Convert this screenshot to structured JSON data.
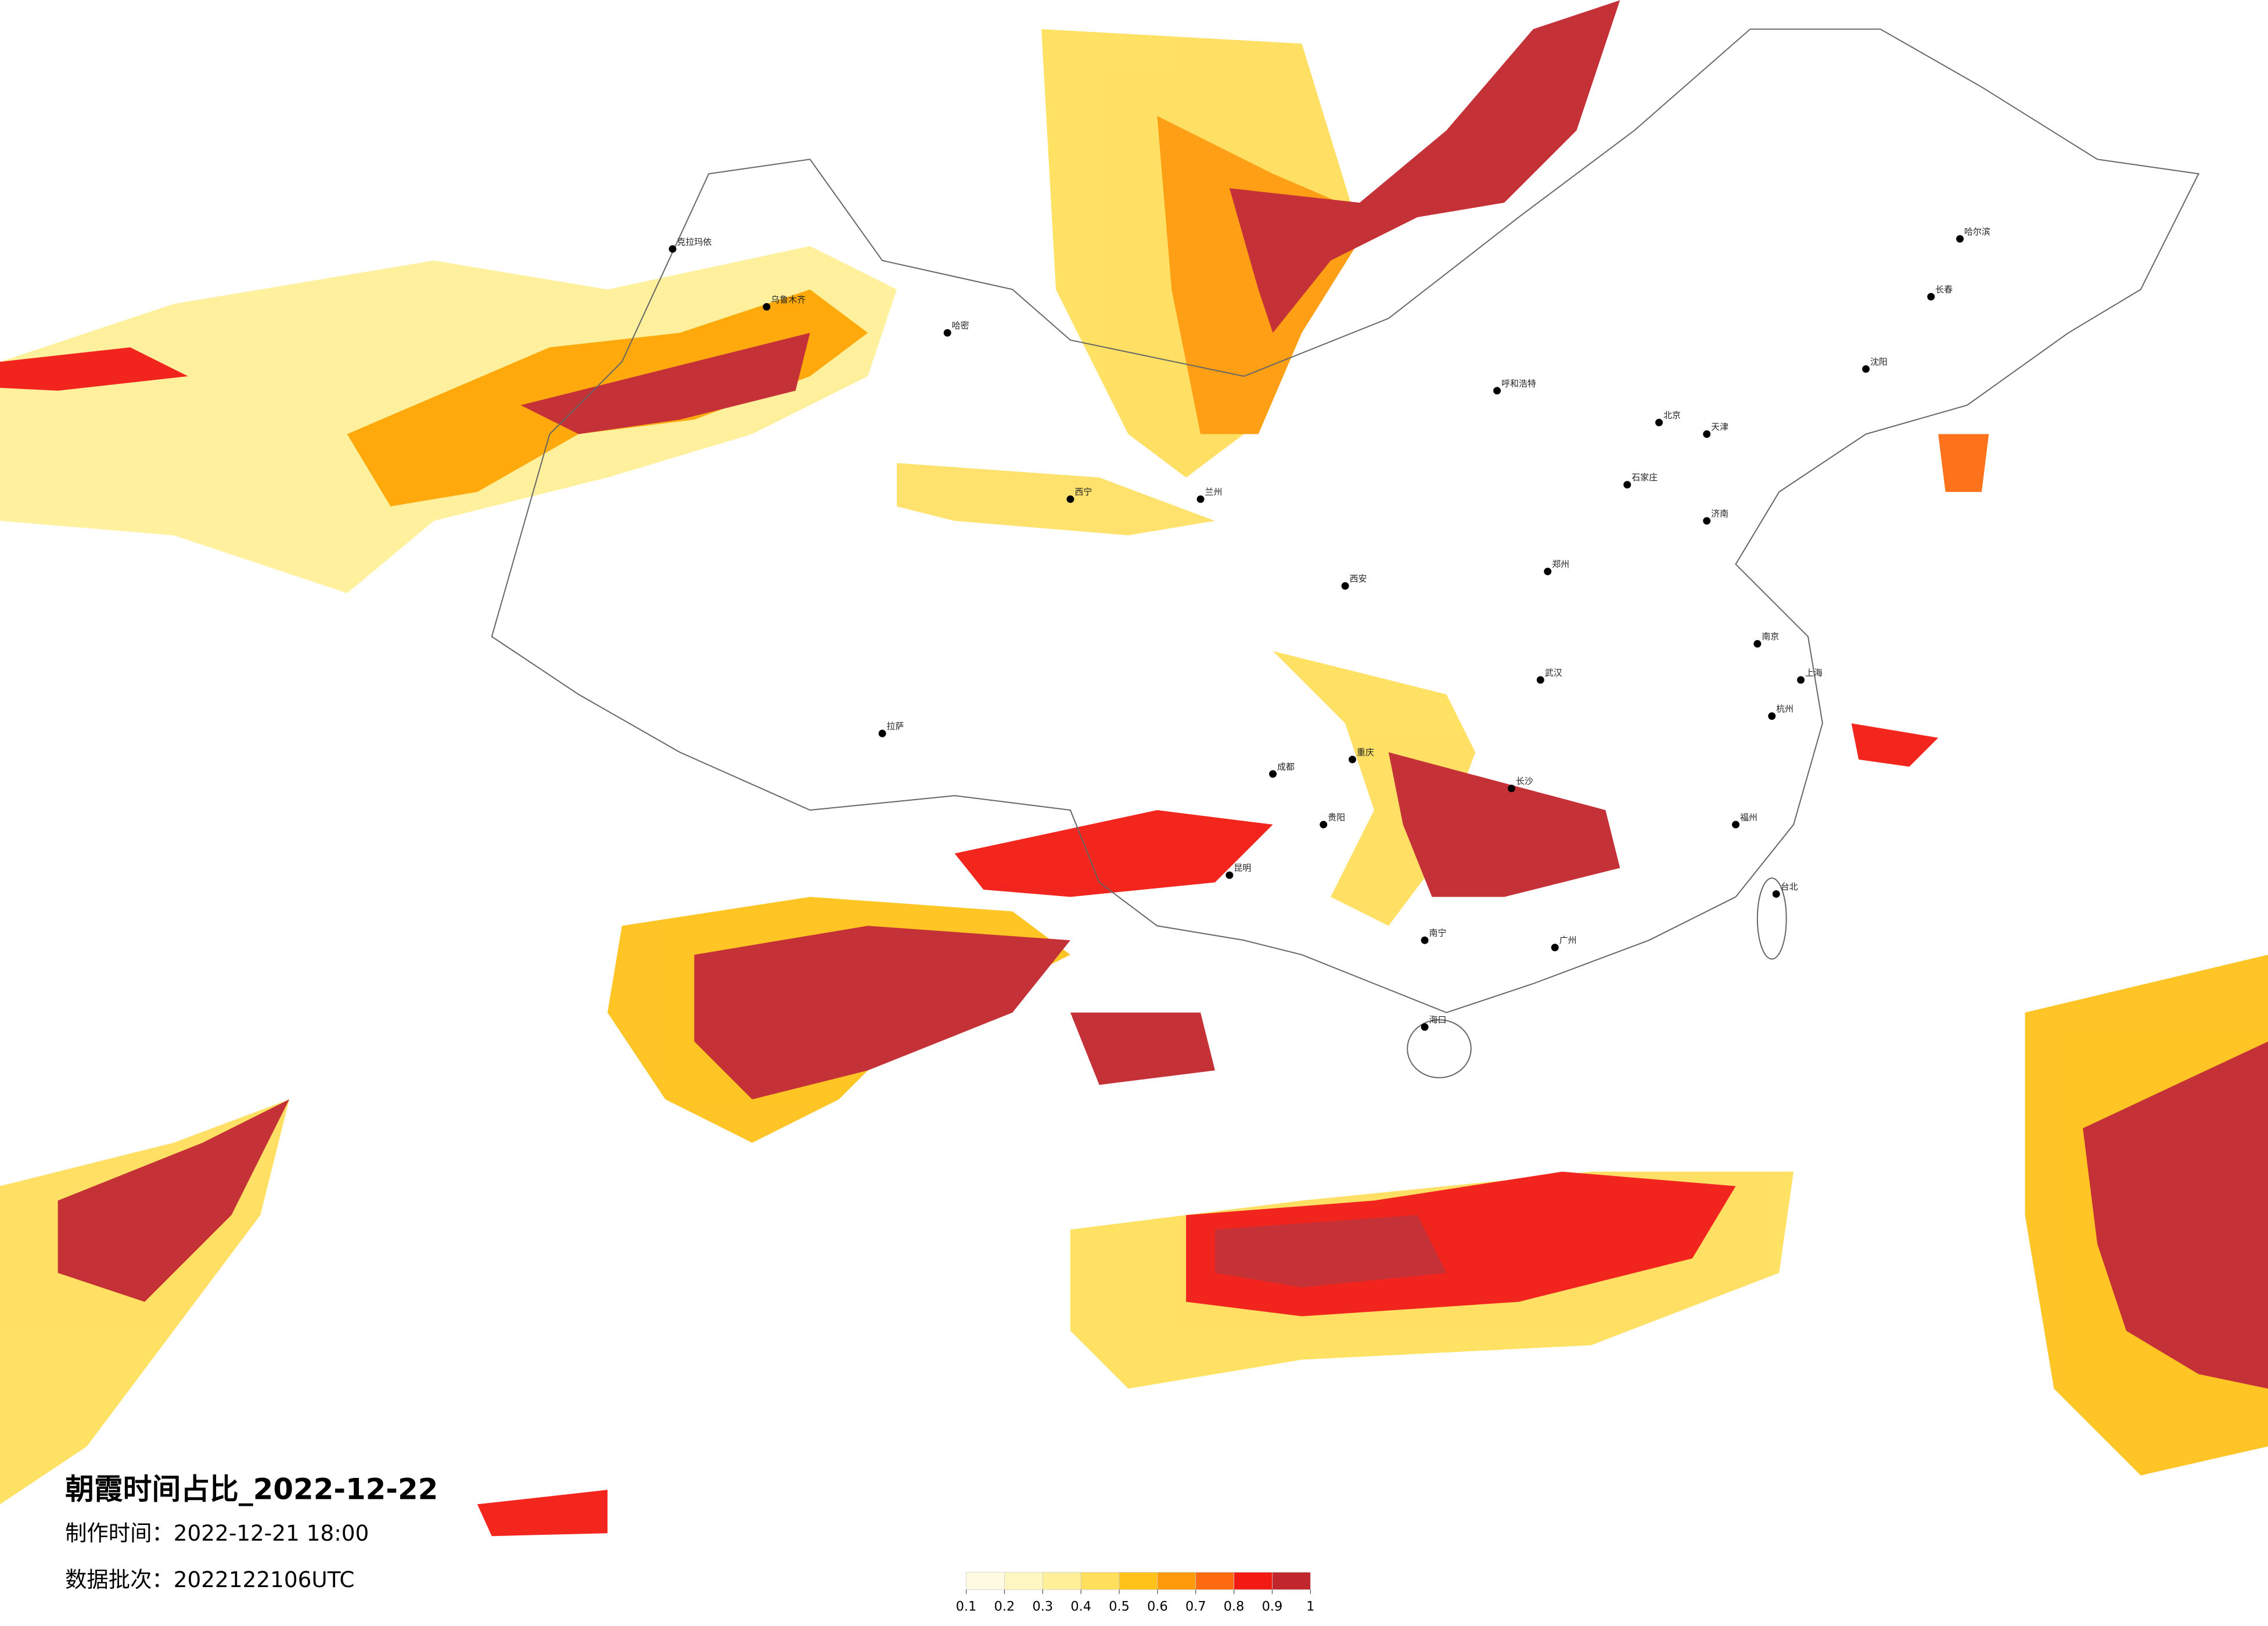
{
  "header": {
    "title": "朝霞时间占比_2022-12-22",
    "made_time": "制作时间：2022-12-21 18:00",
    "batch": "数据批次：2022122106UTC"
  },
  "legend": {
    "ticks": [
      0.1,
      0.2,
      0.3,
      0.4,
      0.5,
      0.6,
      0.7,
      0.8,
      0.9,
      1
    ],
    "colors": [
      "#fffbe3",
      "#fff6c2",
      "#ffef99",
      "#ffdf5c",
      "#ffc21a",
      "#ff9a0a",
      "#ff6a10",
      "#f21a12",
      "#c1272d"
    ]
  },
  "cities": [
    "乌鲁木齐",
    "克拉玛依",
    "哈密",
    "拉萨",
    "西宁",
    "兰州",
    "成都",
    "重庆",
    "昆明",
    "贵阳",
    "西安",
    "北京",
    "天津",
    "石家庄",
    "济南",
    "郑州",
    "武汉",
    "长沙",
    "南京",
    "上海",
    "杭州",
    "福州",
    "广州",
    "南宁",
    "海口",
    "哈尔滨",
    "长春",
    "沈阳",
    "呼和浩特",
    "台北"
  ]
}
